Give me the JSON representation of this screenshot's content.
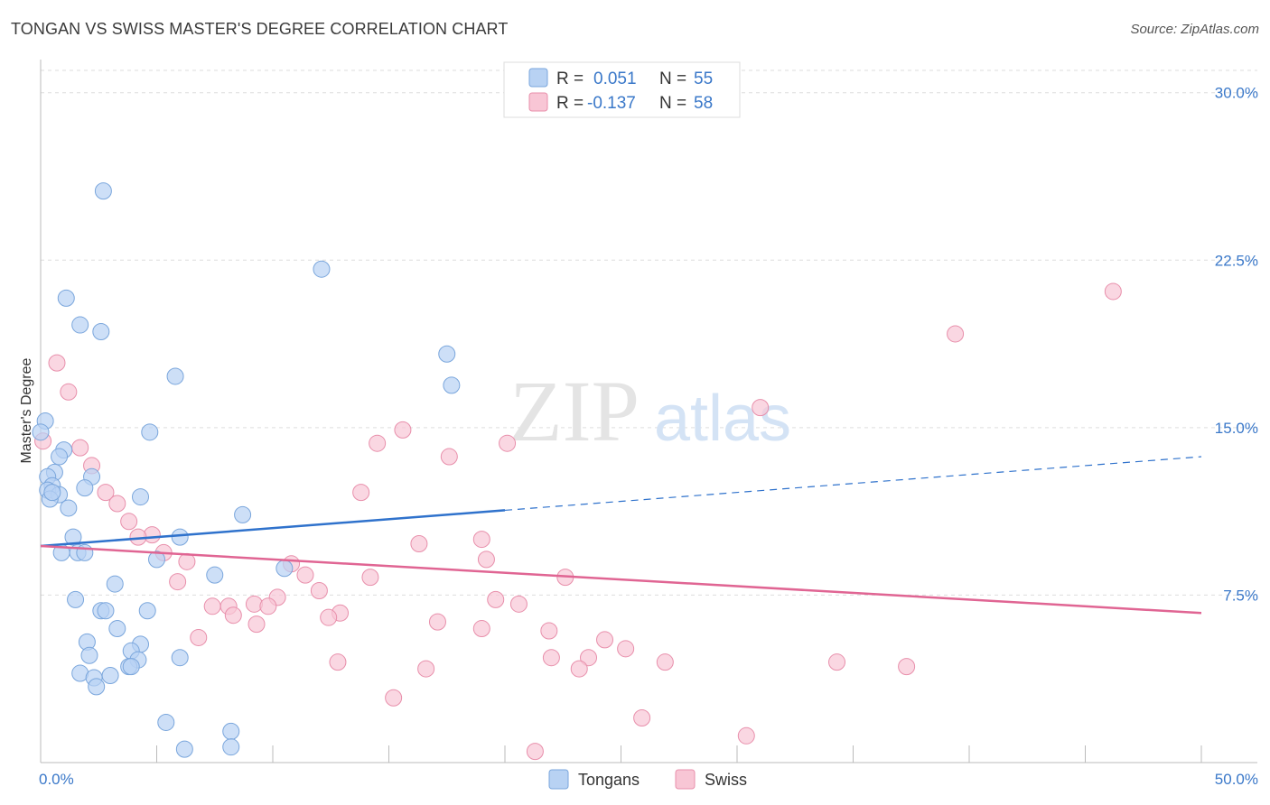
{
  "title": "TONGAN VS SWISS MASTER'S DEGREE CORRELATION CHART",
  "source": "Source: ZipAtlas.com",
  "watermark": {
    "zip": "ZIP",
    "atlas": "atlas"
  },
  "legend": {
    "rows": [
      {
        "r_label": "R =",
        "r_value": "0.051",
        "n_label": "N =",
        "n_value": "55",
        "color": "#a9c8f0"
      },
      {
        "r_label": "R =",
        "r_value": "-0.137",
        "n_label": "N =",
        "n_value": "58",
        "color": "#f6b8cb"
      }
    ]
  },
  "bottom_legend": [
    {
      "label": "Tongans",
      "color": "#a9c8f0"
    },
    {
      "label": "Swiss",
      "color": "#f6b8cb"
    }
  ],
  "colors": {
    "blue_point_fill": "#b8d2f3",
    "blue_point_stroke": "#7aa6dc",
    "pink_point_fill": "#f8c6d5",
    "pink_point_stroke": "#e88fab",
    "blue_line": "#2f72cc",
    "pink_line": "#e06593",
    "tick_label": "#3a78c9",
    "grid": "#dddddd"
  },
  "chart_data": {
    "type": "scatter",
    "title": "TONGAN VS SWISS MASTER'S DEGREE CORRELATION CHART",
    "xlabel": "",
    "ylabel": "Master's Degree",
    "xlim": [
      0,
      50
    ],
    "ylim": [
      0,
      31
    ],
    "x_tick_labels": [
      "0.0%",
      "50.0%"
    ],
    "y_ticks": [
      7.5,
      15.0,
      22.5,
      30.0
    ],
    "y_tick_labels": [
      "7.5%",
      "15.0%",
      "22.5%",
      "30.0%"
    ],
    "grid": "horizontal dashed",
    "legend_position": "top-center",
    "series": [
      {
        "name": "Tongans",
        "r": 0.051,
        "n": 55,
        "trend": {
          "x0": 0,
          "y0": 9.7,
          "x1": 20,
          "y1": 11.3,
          "dashed_to_x": 50,
          "dashed_to_y": 13.7
        },
        "points": [
          [
            2.7,
            25.6
          ],
          [
            12.1,
            22.1
          ],
          [
            1.1,
            20.8
          ],
          [
            1.7,
            19.6
          ],
          [
            2.6,
            19.3
          ],
          [
            17.5,
            18.3
          ],
          [
            5.8,
            17.3
          ],
          [
            17.7,
            16.9
          ],
          [
            0.2,
            15.3
          ],
          [
            0.0,
            14.8
          ],
          [
            4.7,
            14.8
          ],
          [
            1.0,
            14.0
          ],
          [
            0.8,
            13.7
          ],
          [
            0.6,
            13.0
          ],
          [
            0.3,
            12.8
          ],
          [
            2.2,
            12.8
          ],
          [
            0.5,
            12.4
          ],
          [
            0.3,
            12.2
          ],
          [
            1.9,
            12.3
          ],
          [
            0.8,
            12.0
          ],
          [
            0.4,
            11.8
          ],
          [
            4.3,
            11.9
          ],
          [
            1.2,
            11.4
          ],
          [
            8.7,
            11.1
          ],
          [
            1.4,
            10.1
          ],
          [
            6.0,
            10.1
          ],
          [
            0.9,
            9.4
          ],
          [
            1.6,
            9.4
          ],
          [
            1.9,
            9.4
          ],
          [
            5.0,
            9.1
          ],
          [
            10.5,
            8.7
          ],
          [
            7.5,
            8.4
          ],
          [
            3.2,
            8.0
          ],
          [
            1.5,
            7.3
          ],
          [
            2.6,
            6.8
          ],
          [
            2.8,
            6.8
          ],
          [
            4.6,
            6.8
          ],
          [
            3.3,
            6.0
          ],
          [
            2.0,
            5.4
          ],
          [
            4.3,
            5.3
          ],
          [
            3.9,
            5.0
          ],
          [
            2.1,
            4.8
          ],
          [
            6.0,
            4.7
          ],
          [
            4.2,
            4.6
          ],
          [
            3.8,
            4.3
          ],
          [
            3.9,
            4.3
          ],
          [
            1.7,
            4.0
          ],
          [
            3.0,
            3.9
          ],
          [
            2.3,
            3.8
          ],
          [
            2.4,
            3.4
          ],
          [
            5.4,
            1.8
          ],
          [
            8.2,
            1.4
          ],
          [
            8.2,
            0.7
          ],
          [
            6.2,
            0.6
          ],
          [
            0.5,
            12.1
          ]
        ]
      },
      {
        "name": "Swiss",
        "r": -0.137,
        "n": 58,
        "trend": {
          "x0": 0,
          "y0": 9.7,
          "x1": 50,
          "y1": 6.7
        },
        "points": [
          [
            46.2,
            21.1
          ],
          [
            39.4,
            19.2
          ],
          [
            0.7,
            17.9
          ],
          [
            1.2,
            16.6
          ],
          [
            31.0,
            15.9
          ],
          [
            15.6,
            14.9
          ],
          [
            0.1,
            14.4
          ],
          [
            14.5,
            14.3
          ],
          [
            20.1,
            14.3
          ],
          [
            1.7,
            14.1
          ],
          [
            17.6,
            13.7
          ],
          [
            2.2,
            13.3
          ],
          [
            2.8,
            12.1
          ],
          [
            13.8,
            12.1
          ],
          [
            3.3,
            11.6
          ],
          [
            3.8,
            10.8
          ],
          [
            4.8,
            10.2
          ],
          [
            4.2,
            10.1
          ],
          [
            19.0,
            10.0
          ],
          [
            16.3,
            9.8
          ],
          [
            5.3,
            9.4
          ],
          [
            19.2,
            9.1
          ],
          [
            6.3,
            9.0
          ],
          [
            10.8,
            8.9
          ],
          [
            11.4,
            8.4
          ],
          [
            14.2,
            8.3
          ],
          [
            22.6,
            8.3
          ],
          [
            5.9,
            8.1
          ],
          [
            12.0,
            7.7
          ],
          [
            10.2,
            7.4
          ],
          [
            9.2,
            7.1
          ],
          [
            19.6,
            7.3
          ],
          [
            20.6,
            7.1
          ],
          [
            7.4,
            7.0
          ],
          [
            8.1,
            7.0
          ],
          [
            9.8,
            7.0
          ],
          [
            12.9,
            6.7
          ],
          [
            8.3,
            6.6
          ],
          [
            12.4,
            6.5
          ],
          [
            17.1,
            6.3
          ],
          [
            9.3,
            6.2
          ],
          [
            19.0,
            6.0
          ],
          [
            21.9,
            5.9
          ],
          [
            6.8,
            5.6
          ],
          [
            24.3,
            5.5
          ],
          [
            25.2,
            5.1
          ],
          [
            22.0,
            4.7
          ],
          [
            23.6,
            4.7
          ],
          [
            26.9,
            4.5
          ],
          [
            12.8,
            4.5
          ],
          [
            34.3,
            4.5
          ],
          [
            37.3,
            4.3
          ],
          [
            16.6,
            4.2
          ],
          [
            23.2,
            4.2
          ],
          [
            15.2,
            2.9
          ],
          [
            25.9,
            2.0
          ],
          [
            30.4,
            1.2
          ],
          [
            21.3,
            0.5
          ]
        ]
      }
    ]
  }
}
